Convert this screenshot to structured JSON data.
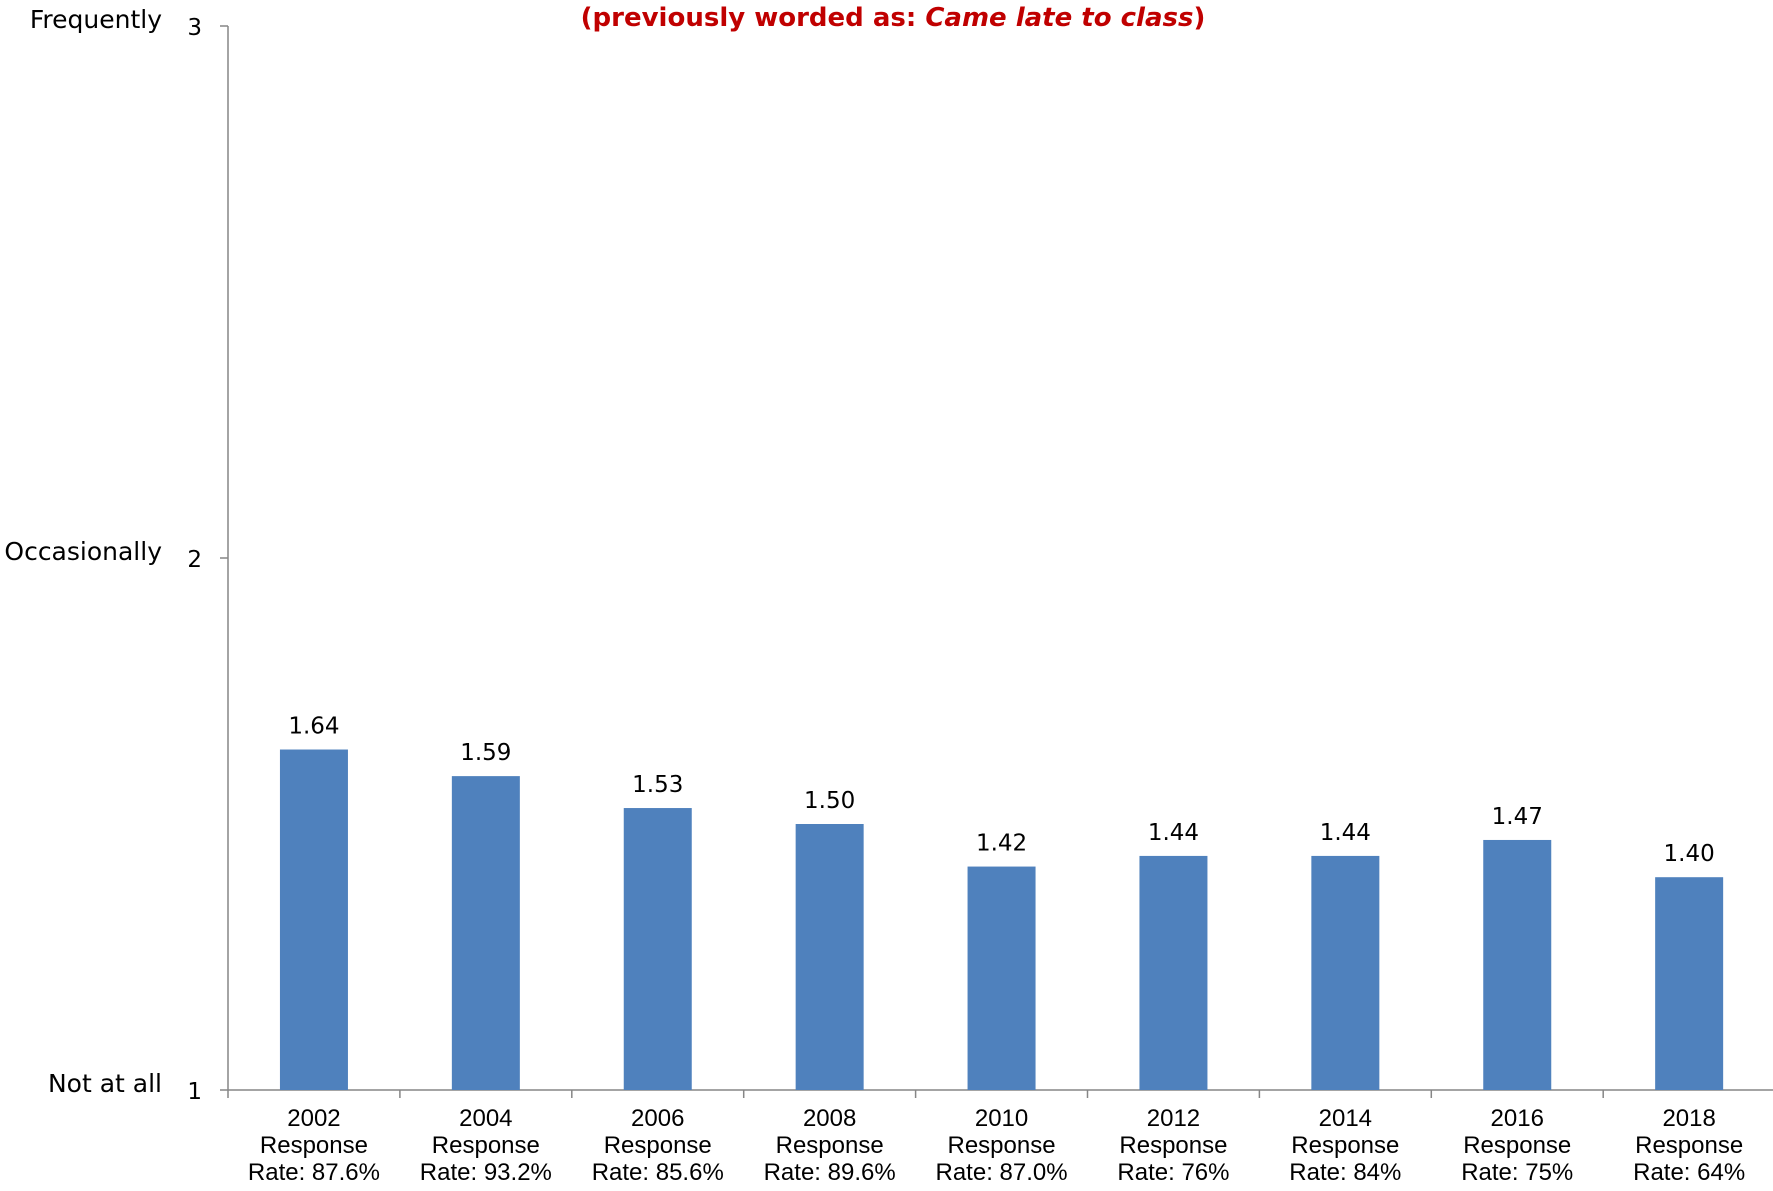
{
  "chart_data": {
    "type": "bar",
    "subtitle_prefix": "(previously worded as:  ",
    "subtitle_italic": "Came late to class",
    "subtitle_suffix": ")",
    "categories": [
      [
        "2002",
        "Response",
        "Rate: 87.6%"
      ],
      [
        "2004",
        "Response",
        "Rate: 93.2%"
      ],
      [
        "2006",
        "Response",
        "Rate: 85.6%"
      ],
      [
        "2008",
        "Response",
        "Rate: 89.6%"
      ],
      [
        "2010",
        "Response",
        "Rate: 87.0%"
      ],
      [
        "2012",
        "Response",
        "Rate: 76%"
      ],
      [
        "2014",
        "Response",
        "Rate: 84%"
      ],
      [
        "2016",
        "Response",
        "Rate: 75%"
      ],
      [
        "2018",
        "Response",
        "Rate: 64%"
      ]
    ],
    "values": [
      1.64,
      1.59,
      1.53,
      1.5,
      1.42,
      1.44,
      1.44,
      1.47,
      1.4
    ],
    "value_labels": [
      "1.64",
      "1.59",
      "1.53",
      "1.50",
      "1.42",
      "1.44",
      "1.44",
      "1.47",
      "1.40"
    ],
    "ylim": [
      1,
      3
    ],
    "y_ticks": [
      {
        "value": 3,
        "label": "3",
        "scale_label": "Frequently"
      },
      {
        "value": 2,
        "label": "2",
        "scale_label": "Occasionally"
      },
      {
        "value": 1,
        "label": "1",
        "scale_label": "Not at all"
      }
    ],
    "bar_color": "#4f81bd",
    "axis_color": "#868686",
    "subtitle_color": "#c00000",
    "grid": false,
    "legend": "none"
  }
}
